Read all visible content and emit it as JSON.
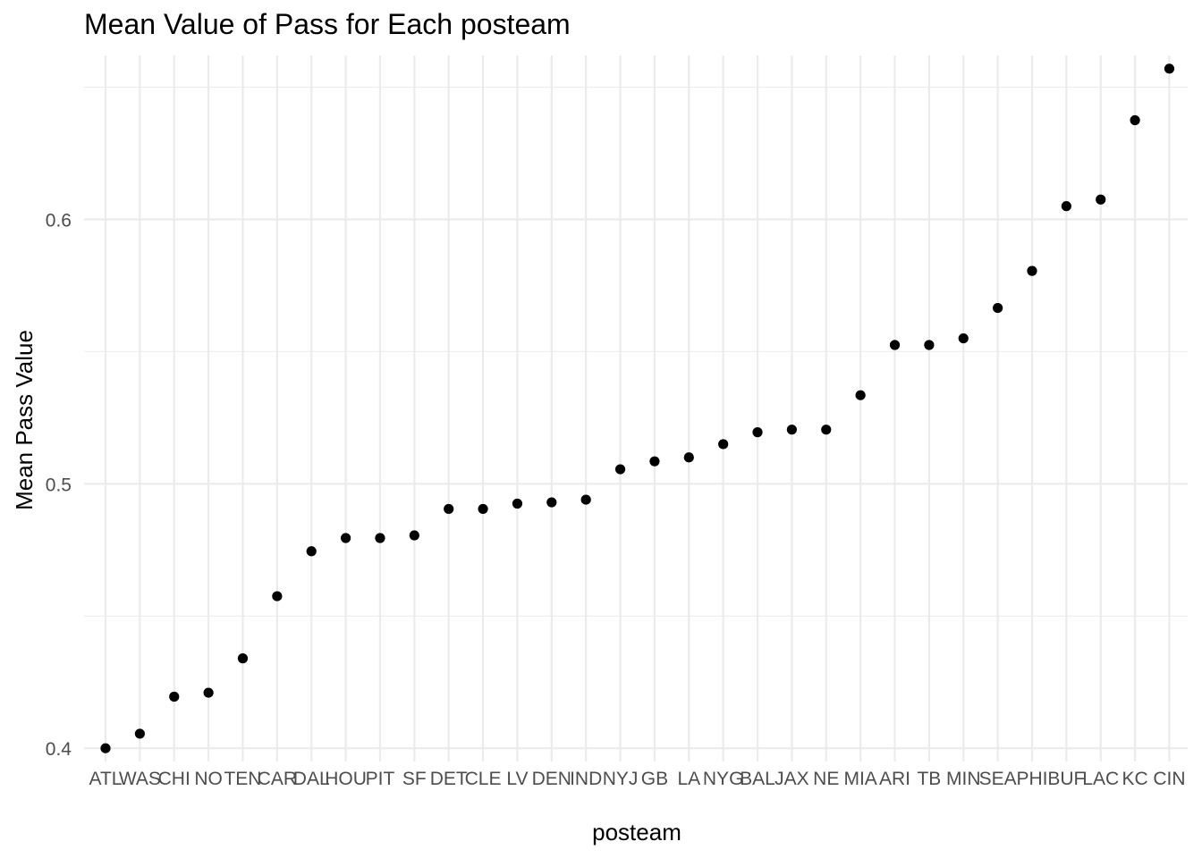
{
  "chart_data": {
    "type": "scatter",
    "title": "Mean Value of Pass for Each posteam",
    "xlabel": "posteam",
    "ylabel": "Mean Pass Value",
    "categories": [
      "ATL",
      "WAS",
      "CHI",
      "NO",
      "TEN",
      "CAR",
      "DAL",
      "HOU",
      "PIT",
      "SF",
      "DET",
      "CLE",
      "LV",
      "DEN",
      "IND",
      "NYJ",
      "GB",
      "LA",
      "NYG",
      "BAL",
      "JAX",
      "NE",
      "MIA",
      "ARI",
      "TB",
      "MIN",
      "SEA",
      "PHI",
      "BUF",
      "LAC",
      "KC",
      "CIN"
    ],
    "values": [
      0.4,
      0.4055,
      0.4195,
      0.421,
      0.434,
      0.4575,
      0.4745,
      0.4795,
      0.4795,
      0.4805,
      0.4905,
      0.4905,
      0.4925,
      0.493,
      0.494,
      0.5055,
      0.5085,
      0.51,
      0.515,
      0.5195,
      0.5205,
      0.5205,
      0.5335,
      0.5525,
      0.5525,
      0.555,
      0.5665,
      0.5805,
      0.605,
      0.6075,
      0.6375,
      0.657
    ],
    "ylim": [
      0.395,
      0.662
    ],
    "yticks": [
      0.4,
      0.5,
      0.6
    ],
    "ytick_labels": [
      "0.4",
      "0.5",
      "0.6"
    ],
    "grid": true,
    "legend": "none",
    "point_color": "#000000"
  }
}
